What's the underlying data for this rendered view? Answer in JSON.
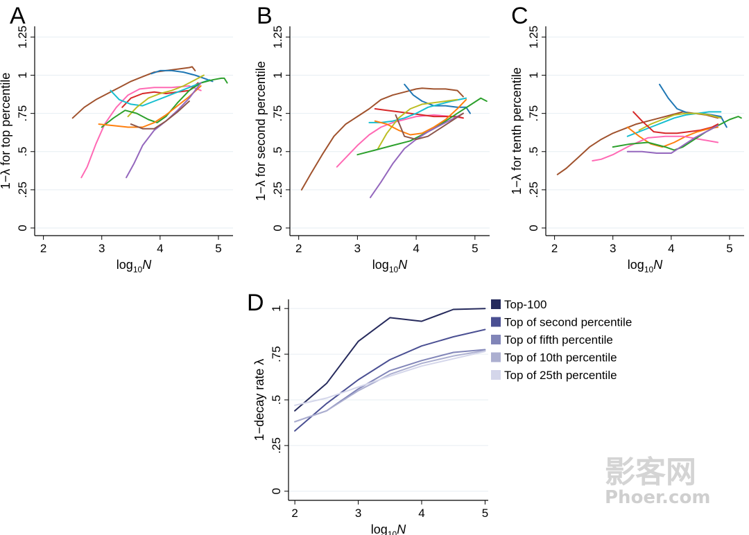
{
  "chart_data": [
    {
      "panel": "A",
      "type": "line",
      "xlabel_base": "log",
      "xlabel_sub": "10",
      "xlabel_var": "N",
      "ylabel": "1−λ for top percentile",
      "xlim": [
        1.85,
        5.25
      ],
      "ylim": [
        -0.05,
        1.32
      ],
      "xticks": [
        "2",
        "3",
        "4",
        "5"
      ],
      "xtick_values": [
        2,
        3,
        4,
        5
      ],
      "yticks": [
        "0",
        ".25",
        ".5",
        ".75",
        "1",
        "1.25"
      ],
      "ytick_values": [
        0,
        0.25,
        0.5,
        0.75,
        1,
        1.25
      ],
      "series": [
        {
          "color": "#a0522d",
          "x": [
            2.5,
            2.7,
            2.9,
            3.1,
            3.3,
            3.5,
            3.7,
            3.9,
            4.1,
            4.3,
            4.5,
            4.55,
            4.6
          ],
          "y": [
            0.72,
            0.79,
            0.84,
            0.88,
            0.92,
            0.96,
            0.99,
            1.02,
            1.03,
            1.04,
            1.05,
            1.055,
            1.03
          ]
        },
        {
          "color": "#1f77b4",
          "x": [
            3.85,
            4.0,
            4.2,
            4.4,
            4.6,
            4.75,
            4.9
          ],
          "y": [
            1.01,
            1.03,
            1.03,
            1.02,
            1.0,
            0.98,
            0.96
          ]
        },
        {
          "color": "#ff69b4",
          "x": [
            2.65,
            2.75,
            2.9,
            3.05,
            3.25,
            3.45,
            3.65,
            3.9,
            4.2,
            4.5,
            4.7
          ],
          "y": [
            0.33,
            0.4,
            0.55,
            0.68,
            0.79,
            0.87,
            0.91,
            0.92,
            0.92,
            0.93,
            0.9
          ]
        },
        {
          "color": "#d62728",
          "x": [
            3.35,
            3.5,
            3.7,
            3.9,
            4.1,
            4.3,
            4.5,
            4.65
          ],
          "y": [
            0.79,
            0.85,
            0.88,
            0.89,
            0.88,
            0.89,
            0.9,
            0.95
          ]
        },
        {
          "color": "#17becf",
          "x": [
            3.15,
            3.3,
            3.5,
            3.7,
            3.9,
            4.1,
            4.3,
            4.5,
            4.7,
            4.85
          ],
          "y": [
            0.9,
            0.84,
            0.81,
            0.8,
            0.83,
            0.86,
            0.89,
            0.92,
            0.95,
            0.97
          ]
        },
        {
          "color": "#bcbd22",
          "x": [
            3.45,
            3.6,
            3.8,
            4.0,
            4.2,
            4.4,
            4.6,
            4.75
          ],
          "y": [
            0.73,
            0.79,
            0.85,
            0.88,
            0.9,
            0.93,
            0.97,
            1.0
          ]
        },
        {
          "color": "#2ca02c",
          "x": [
            3.0,
            3.2,
            3.4,
            3.6,
            3.8,
            3.95,
            4.1,
            4.3,
            4.5,
            4.7,
            4.9,
            5.05,
            5.1,
            5.15
          ],
          "y": [
            0.66,
            0.72,
            0.77,
            0.75,
            0.71,
            0.69,
            0.73,
            0.82,
            0.9,
            0.95,
            0.97,
            0.98,
            0.98,
            0.95
          ]
        },
        {
          "color": "#ff7f0e",
          "x": [
            2.95,
            3.2,
            3.45,
            3.7,
            3.9,
            4.1,
            4.3,
            4.5,
            4.7
          ],
          "y": [
            0.68,
            0.67,
            0.66,
            0.66,
            0.69,
            0.74,
            0.8,
            0.86,
            0.93
          ]
        },
        {
          "color": "#9467bd",
          "x": [
            3.42,
            3.55,
            3.7,
            3.9,
            4.1,
            4.3,
            4.5,
            4.7
          ],
          "y": [
            0.33,
            0.42,
            0.54,
            0.64,
            0.7,
            0.77,
            0.85,
            0.95
          ]
        },
        {
          "color": "#8c564b",
          "x": [
            3.5,
            3.7,
            3.9,
            4.1,
            4.3,
            4.5
          ],
          "y": [
            0.68,
            0.65,
            0.65,
            0.7,
            0.76,
            0.83
          ]
        }
      ]
    },
    {
      "panel": "B",
      "type": "line",
      "xlabel_base": "log",
      "xlabel_sub": "10",
      "xlabel_var": "N",
      "ylabel": "1−λ for second percentile",
      "xlim": [
        1.85,
        5.25
      ],
      "ylim": [
        -0.05,
        1.32
      ],
      "xticks": [
        "2",
        "3",
        "4",
        "5"
      ],
      "xtick_values": [
        2,
        3,
        4,
        5
      ],
      "yticks": [
        "0",
        ".25",
        ".5",
        ".75",
        "1",
        "1.25"
      ],
      "ytick_values": [
        0,
        0.25,
        0.5,
        0.75,
        1,
        1.25
      ],
      "series": [
        {
          "color": "#a0522d",
          "x": [
            2.05,
            2.2,
            2.4,
            2.6,
            2.8,
            3.0,
            3.2,
            3.4,
            3.6,
            3.8,
            4.0,
            4.1,
            4.3,
            4.5,
            4.7,
            4.8
          ],
          "y": [
            0.25,
            0.35,
            0.48,
            0.6,
            0.68,
            0.73,
            0.78,
            0.84,
            0.87,
            0.89,
            0.91,
            0.915,
            0.91,
            0.91,
            0.9,
            0.86
          ]
        },
        {
          "color": "#ff69b4",
          "x": [
            2.65,
            2.8,
            3.0,
            3.2,
            3.4,
            3.6,
            3.8,
            4.0,
            4.3,
            4.6,
            4.8
          ],
          "y": [
            0.4,
            0.46,
            0.54,
            0.61,
            0.66,
            0.69,
            0.71,
            0.73,
            0.74,
            0.73,
            0.72
          ]
        },
        {
          "color": "#1f77b4",
          "x": [
            3.8,
            3.95,
            4.1,
            4.3,
            4.5,
            4.7,
            4.85,
            4.92
          ],
          "y": [
            0.94,
            0.87,
            0.83,
            0.8,
            0.8,
            0.79,
            0.79,
            0.75
          ]
        },
        {
          "color": "#d62728",
          "x": [
            3.3,
            3.5,
            3.7,
            3.9,
            4.1,
            4.3,
            4.5,
            4.7,
            4.8
          ],
          "y": [
            0.78,
            0.77,
            0.76,
            0.75,
            0.74,
            0.73,
            0.73,
            0.73,
            0.72
          ]
        },
        {
          "color": "#17becf",
          "x": [
            3.2,
            3.4,
            3.6,
            3.8,
            4.0,
            4.2,
            4.4,
            4.6,
            4.85
          ],
          "y": [
            0.69,
            0.69,
            0.7,
            0.72,
            0.75,
            0.79,
            0.81,
            0.83,
            0.85
          ]
        },
        {
          "color": "#bcbd22",
          "x": [
            3.35,
            3.5,
            3.7,
            3.9,
            4.1,
            4.3,
            4.5,
            4.7
          ],
          "y": [
            0.52,
            0.62,
            0.72,
            0.78,
            0.81,
            0.82,
            0.83,
            0.84
          ]
        },
        {
          "color": "#2ca02c",
          "x": [
            3.0,
            3.3,
            3.6,
            3.9,
            4.1,
            4.3,
            4.5,
            4.7,
            4.9,
            5.1,
            5.2
          ],
          "y": [
            0.48,
            0.51,
            0.54,
            0.57,
            0.61,
            0.65,
            0.7,
            0.75,
            0.8,
            0.85,
            0.83
          ]
        },
        {
          "color": "#ff7f0e",
          "x": [
            3.3,
            3.5,
            3.7,
            3.9,
            4.1,
            4.3,
            4.5,
            4.7,
            4.85
          ],
          "y": [
            0.7,
            0.68,
            0.64,
            0.61,
            0.62,
            0.66,
            0.71,
            0.78,
            0.84
          ]
        },
        {
          "color": "#9467bd",
          "x": [
            3.22,
            3.4,
            3.6,
            3.8,
            4.0,
            4.2,
            4.4,
            4.6,
            4.8
          ],
          "y": [
            0.2,
            0.3,
            0.42,
            0.52,
            0.58,
            0.63,
            0.67,
            0.71,
            0.75
          ]
        },
        {
          "color": "#8c564b",
          "x": [
            3.65,
            3.8,
            4.0,
            4.2,
            4.4,
            4.6,
            4.8
          ],
          "y": [
            0.74,
            0.6,
            0.58,
            0.6,
            0.65,
            0.7,
            0.75
          ]
        }
      ]
    },
    {
      "panel": "C",
      "type": "line",
      "xlabel_base": "log",
      "xlabel_sub": "10",
      "xlabel_var": "N",
      "ylabel": "1−λ for tenth percentile",
      "xlim": [
        1.85,
        5.25
      ],
      "ylim": [
        -0.05,
        1.32
      ],
      "xticks": [
        "2",
        "3",
        "4",
        "5"
      ],
      "xtick_values": [
        2,
        3,
        4,
        5
      ],
      "yticks": [
        "0",
        ".25",
        ".5",
        ".75",
        "1",
        "1.25"
      ],
      "ytick_values": [
        0,
        0.25,
        0.5,
        0.75,
        1,
        1.25
      ],
      "series": [
        {
          "color": "#a0522d",
          "x": [
            2.05,
            2.2,
            2.4,
            2.6,
            2.8,
            3.0,
            3.2,
            3.4,
            3.6,
            3.8,
            4.0,
            4.2,
            4.4,
            4.6,
            4.8
          ],
          "y": [
            0.35,
            0.39,
            0.46,
            0.53,
            0.58,
            0.62,
            0.65,
            0.68,
            0.7,
            0.72,
            0.74,
            0.76,
            0.75,
            0.74,
            0.72
          ]
        },
        {
          "color": "#1f77b4",
          "x": [
            3.8,
            3.95,
            4.1,
            4.3,
            4.5,
            4.7,
            4.85,
            4.95
          ],
          "y": [
            0.94,
            0.85,
            0.78,
            0.75,
            0.75,
            0.74,
            0.73,
            0.66
          ]
        },
        {
          "color": "#17becf",
          "x": [
            3.25,
            3.45,
            3.65,
            3.85,
            4.05,
            4.25,
            4.45,
            4.65,
            4.85
          ],
          "y": [
            0.6,
            0.63,
            0.66,
            0.69,
            0.72,
            0.74,
            0.75,
            0.76,
            0.76
          ]
        },
        {
          "color": "#bcbd22",
          "x": [
            3.45,
            3.65,
            3.85,
            4.05,
            4.25,
            4.45,
            4.65,
            4.85
          ],
          "y": [
            0.64,
            0.68,
            0.71,
            0.74,
            0.75,
            0.75,
            0.74,
            0.72
          ]
        },
        {
          "color": "#d62728",
          "x": [
            3.35,
            3.5,
            3.7,
            3.9,
            4.1,
            4.3,
            4.5,
            4.7,
            4.8
          ],
          "y": [
            0.76,
            0.7,
            0.63,
            0.62,
            0.62,
            0.63,
            0.64,
            0.66,
            0.68
          ]
        },
        {
          "color": "#ff7f0e",
          "x": [
            3.25,
            3.45,
            3.65,
            3.85,
            4.05,
            4.25,
            4.45,
            4.65,
            4.8
          ],
          "y": [
            0.66,
            0.6,
            0.55,
            0.53,
            0.56,
            0.6,
            0.63,
            0.65,
            0.66
          ]
        },
        {
          "color": "#ff69b4",
          "x": [
            2.65,
            2.8,
            3.0,
            3.3,
            3.6,
            3.9,
            4.2,
            4.5,
            4.8
          ],
          "y": [
            0.44,
            0.45,
            0.48,
            0.54,
            0.59,
            0.6,
            0.6,
            0.58,
            0.56
          ]
        },
        {
          "color": "#2ca02c",
          "x": [
            3.0,
            3.3,
            3.6,
            3.9,
            4.05,
            4.2,
            4.4,
            4.6,
            4.8,
            5.0,
            5.15,
            5.2
          ],
          "y": [
            0.53,
            0.55,
            0.56,
            0.53,
            0.51,
            0.53,
            0.58,
            0.63,
            0.67,
            0.71,
            0.73,
            0.72
          ]
        },
        {
          "color": "#9467bd",
          "x": [
            3.25,
            3.5,
            3.75,
            4.0,
            4.2,
            4.4,
            4.6,
            4.8
          ],
          "y": [
            0.5,
            0.5,
            0.49,
            0.49,
            0.54,
            0.59,
            0.63,
            0.67
          ]
        }
      ]
    },
    {
      "panel": "D",
      "type": "line",
      "xlabel_base": "log",
      "xlabel_sub": "10",
      "xlabel_var": "N",
      "ylabel": "1−decay rate λ",
      "xlim": [
        1.9,
        5.05
      ],
      "ylim": [
        -0.05,
        1.05
      ],
      "xticks": [
        "2",
        "3",
        "4",
        "5"
      ],
      "xtick_values": [
        2,
        3,
        4,
        5
      ],
      "yticks": [
        "0",
        ".25",
        ".5",
        ".75",
        "1"
      ],
      "ytick_values": [
        0,
        0.25,
        0.5,
        0.75,
        1
      ],
      "legend_position": "right",
      "series": [
        {
          "name": "Top-100",
          "color": "#262a5c",
          "x": [
            2,
            2.5,
            3,
            3.5,
            4,
            4.5,
            5
          ],
          "y": [
            0.44,
            0.59,
            0.82,
            0.95,
            0.93,
            0.995,
            1.0
          ]
        },
        {
          "name": "Top of second percentile",
          "color": "#4a4f92",
          "x": [
            2,
            2.5,
            3,
            3.5,
            4,
            4.5,
            5
          ],
          "y": [
            0.33,
            0.48,
            0.61,
            0.72,
            0.795,
            0.845,
            0.885
          ]
        },
        {
          "name": "Top of fifth percentile",
          "color": "#8185b8",
          "x": [
            2,
            2.5,
            3,
            3.5,
            4,
            4.5,
            5
          ],
          "y": [
            0.38,
            0.44,
            0.56,
            0.66,
            0.715,
            0.76,
            0.775
          ]
        },
        {
          "name": "Top of 10th percentile",
          "color": "#acafd0",
          "x": [
            2,
            2.5,
            3,
            3.5,
            4,
            4.5,
            5
          ],
          "y": [
            0.38,
            0.44,
            0.55,
            0.64,
            0.7,
            0.74,
            0.77
          ]
        },
        {
          "name": "Top of 25th percentile",
          "color": "#d4d6ea",
          "x": [
            2,
            2.5,
            3,
            3.5,
            4,
            4.5,
            5
          ],
          "y": [
            0.47,
            0.51,
            0.57,
            0.63,
            0.685,
            0.725,
            0.765
          ]
        }
      ]
    }
  ],
  "watermark": {
    "line1": "影客网",
    "line2": "Phoer.com"
  }
}
